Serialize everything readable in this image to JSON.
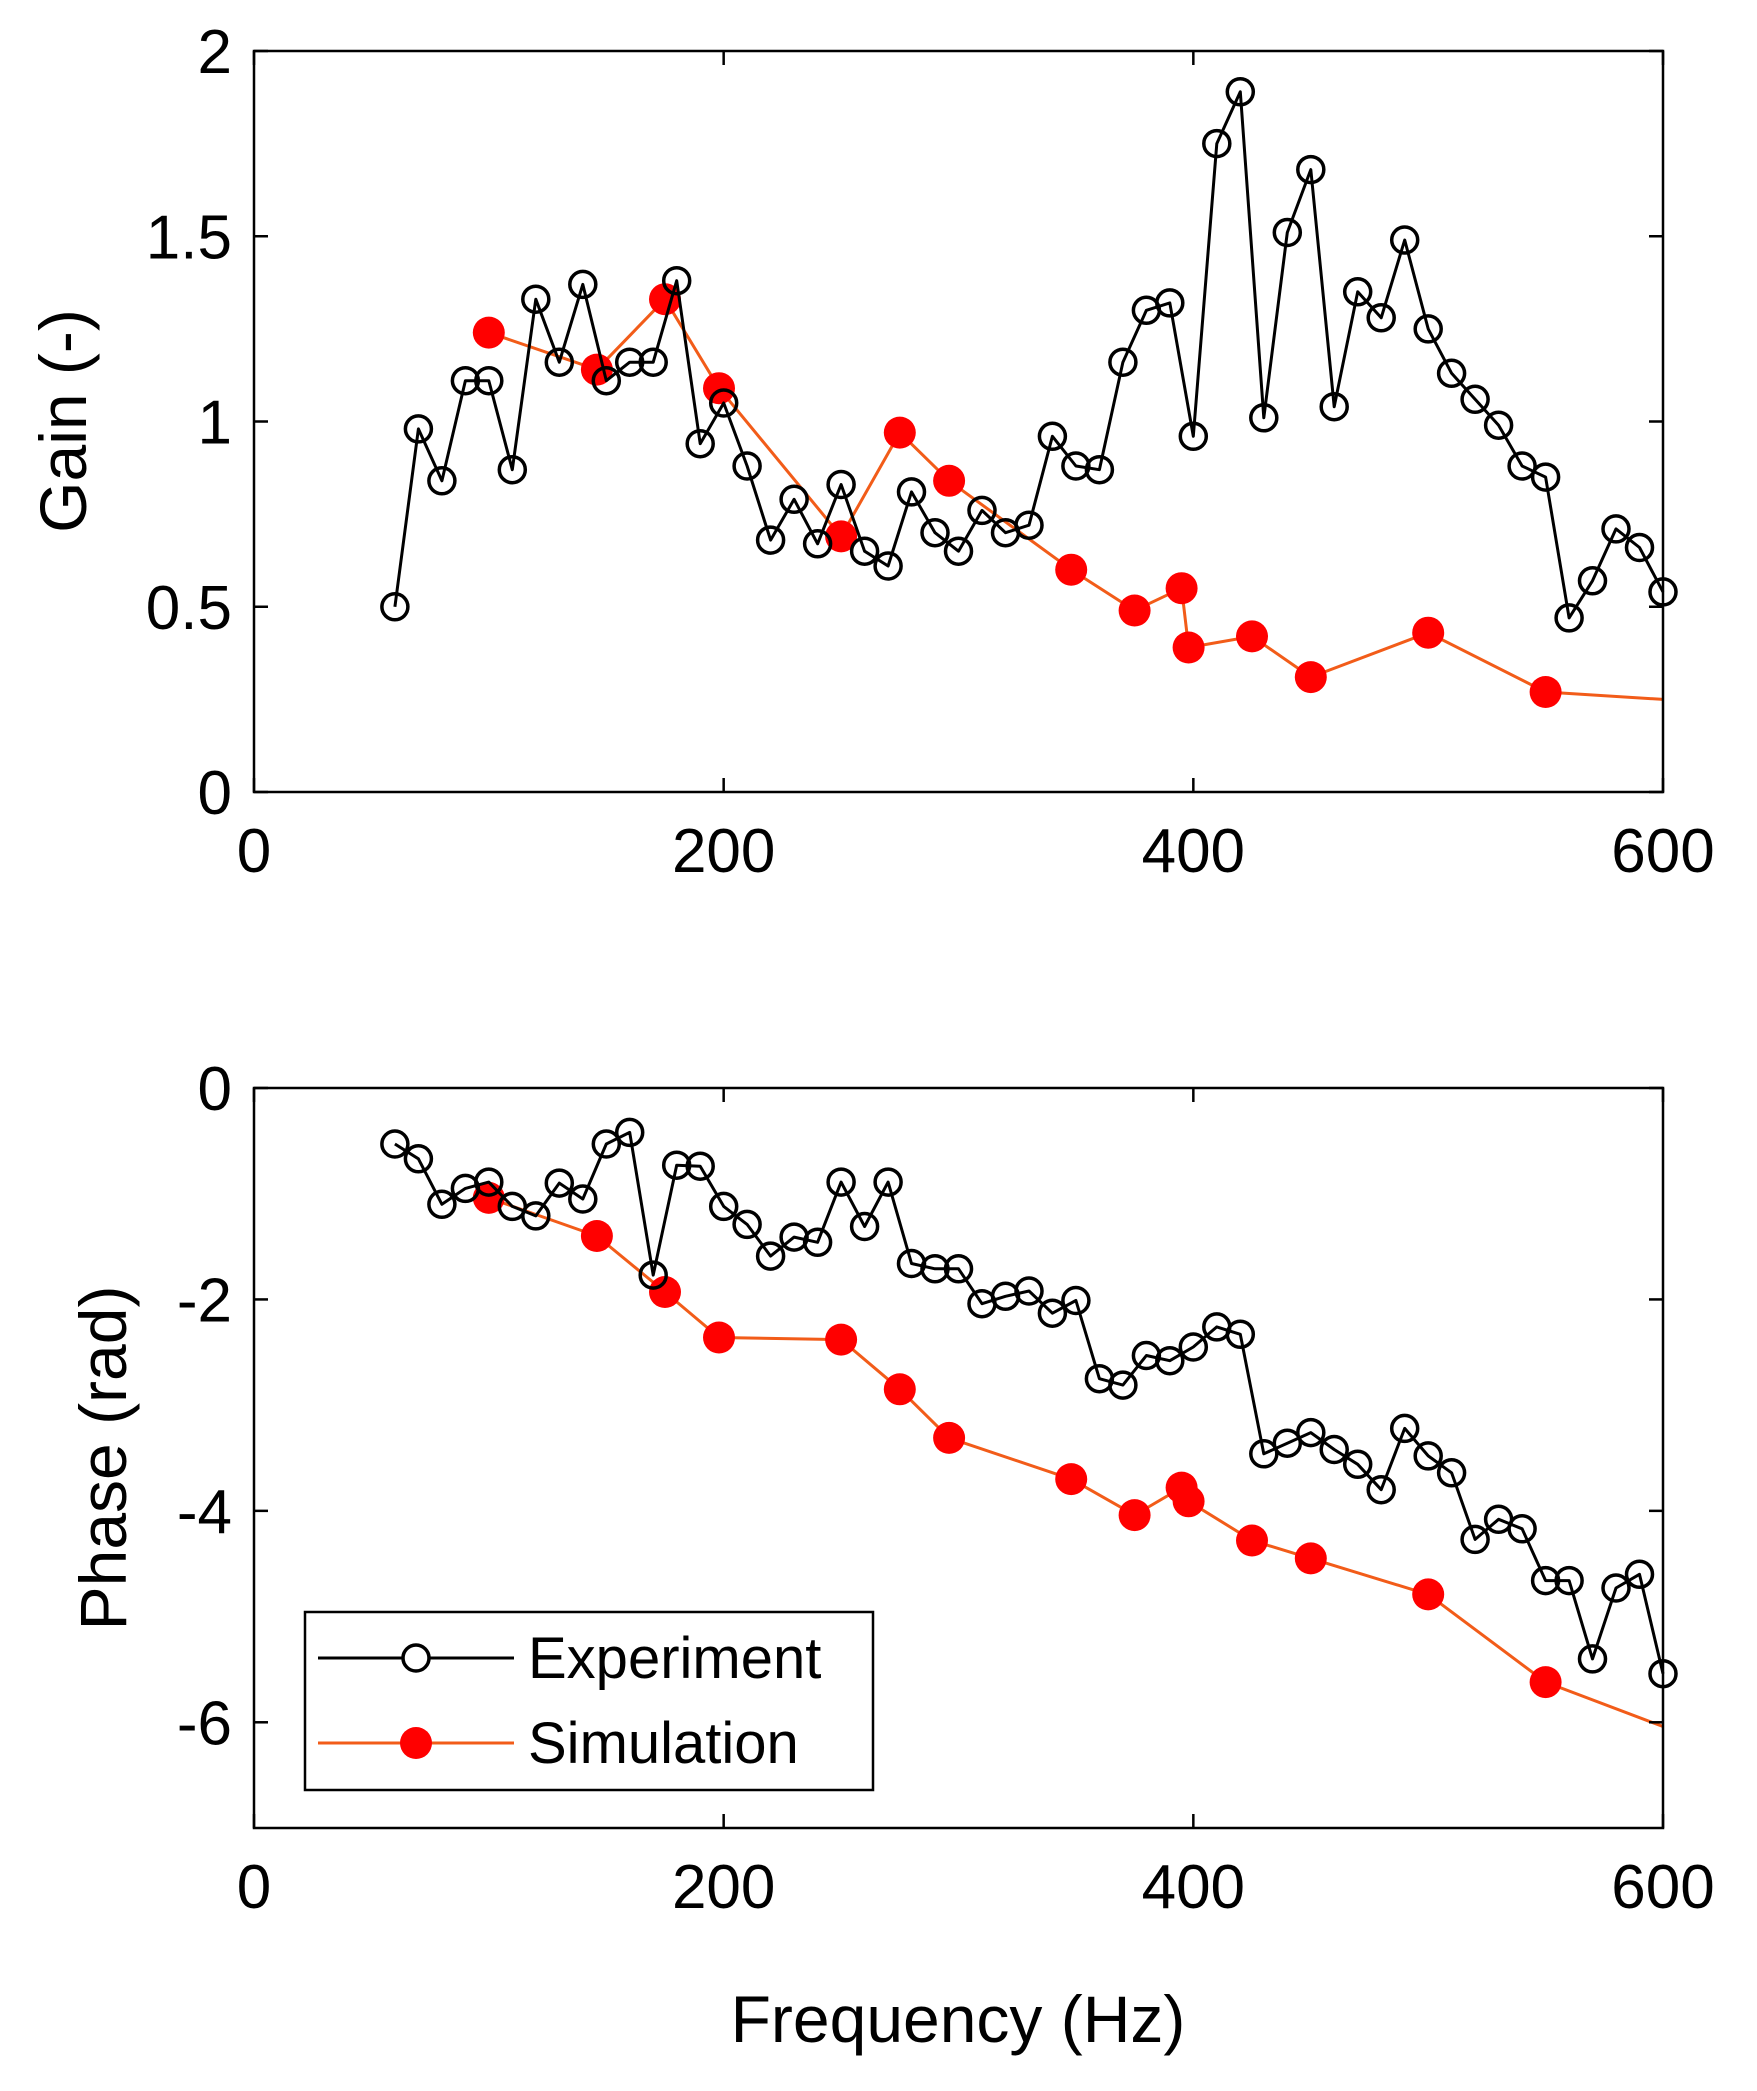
{
  "colors": {
    "experiment": "#000000",
    "simulation_line": "#f25c19",
    "simulation_marker": "#ff0000"
  },
  "legend": {
    "experiment_label": "Experiment",
    "simulation_label": "Simulation",
    "location": "bottom-left of lower plot"
  },
  "chart_data": [
    {
      "type": "line",
      "ylabel": "Gain (-)",
      "xlabel": "",
      "xlim": [
        0,
        600
      ],
      "ylim": [
        0,
        2
      ],
      "xticks": [
        0,
        200,
        400,
        600
      ],
      "xtick_labels": [
        "0",
        "200",
        "400",
        "600"
      ],
      "yticks": [
        0,
        0.5,
        1,
        1.5,
        2
      ],
      "ytick_labels": [
        "0",
        "0.5",
        "1",
        "1.5",
        "2"
      ],
      "series": [
        {
          "name": "Experiment",
          "marker": "open-circle",
          "x": [
            60,
            70,
            80,
            90,
            100,
            110,
            120,
            130,
            140,
            150,
            160,
            170,
            180,
            190,
            200,
            210,
            220,
            230,
            240,
            250,
            260,
            270,
            280,
            290,
            300,
            310,
            320,
            330,
            340,
            350,
            360,
            370,
            380,
            390,
            400,
            410,
            420,
            430,
            440,
            450,
            460,
            470,
            480,
            490,
            500,
            510,
            520,
            530,
            540,
            550,
            560,
            570,
            580,
            590,
            600
          ],
          "y": [
            0.5,
            0.98,
            0.84,
            1.11,
            1.11,
            0.87,
            1.33,
            1.16,
            1.37,
            1.11,
            1.16,
            1.16,
            1.38,
            0.94,
            1.05,
            0.88,
            0.68,
            0.79,
            0.67,
            0.83,
            0.65,
            0.61,
            0.81,
            0.7,
            0.65,
            0.76,
            0.7,
            0.72,
            0.96,
            0.88,
            0.87,
            1.16,
            1.3,
            1.32,
            0.96,
            1.75,
            1.89,
            1.01,
            1.51,
            1.68,
            1.04,
            1.35,
            1.28,
            1.49,
            1.25,
            1.13,
            1.06,
            0.99,
            0.88,
            0.85,
            0.47,
            0.57,
            0.71,
            0.66,
            0.54
          ]
        },
        {
          "name": "Simulation",
          "marker": "filled-circle",
          "x": [
            100,
            146,
            175,
            198,
            250,
            275,
            296,
            348,
            375,
            395,
            398,
            425,
            450,
            500,
            550,
            600
          ],
          "y": [
            1.24,
            1.14,
            1.33,
            1.09,
            0.69,
            0.97,
            0.84,
            0.6,
            0.49,
            0.55,
            0.39,
            0.42,
            0.31,
            0.43,
            0.27,
            0.25
          ],
          "marker_shown": [
            true,
            true,
            true,
            true,
            true,
            true,
            true,
            true,
            true,
            true,
            true,
            true,
            true,
            true,
            true,
            false
          ]
        }
      ]
    },
    {
      "type": "line",
      "ylabel": "Phase (rad)",
      "xlabel": "Frequency (Hz)",
      "xlim": [
        0,
        600
      ],
      "ylim": [
        -7,
        0
      ],
      "xticks": [
        0,
        200,
        400,
        600
      ],
      "xtick_labels": [
        "0",
        "200",
        "400",
        "600"
      ],
      "yticks": [
        -6,
        -4,
        -2,
        0
      ],
      "ytick_labels": [
        "-6",
        "-4",
        "-2",
        "0"
      ],
      "series": [
        {
          "name": "Experiment",
          "marker": "open-circle",
          "x": [
            60,
            70,
            80,
            90,
            100,
            110,
            120,
            130,
            140,
            150,
            160,
            170,
            180,
            190,
            200,
            210,
            220,
            230,
            240,
            250,
            260,
            270,
            280,
            290,
            300,
            310,
            320,
            330,
            340,
            350,
            360,
            370,
            380,
            390,
            400,
            410,
            420,
            430,
            440,
            450,
            460,
            470,
            480,
            490,
            500,
            510,
            520,
            530,
            540,
            550,
            560,
            570,
            580,
            590,
            600
          ],
          "y": [
            -0.53,
            -0.67,
            -1.1,
            -0.95,
            -0.89,
            -1.12,
            -1.21,
            -0.9,
            -1.05,
            -0.53,
            -0.42,
            -1.77,
            -0.73,
            -0.74,
            -1.12,
            -1.29,
            -1.59,
            -1.41,
            -1.46,
            -0.89,
            -1.31,
            -0.89,
            -1.66,
            -1.71,
            -1.71,
            -2.04,
            -1.97,
            -1.92,
            -2.13,
            -2.01,
            -2.75,
            -2.81,
            -2.53,
            -2.58,
            -2.45,
            -2.26,
            -2.33,
            -3.46,
            -3.36,
            -3.26,
            -3.42,
            -3.56,
            -3.8,
            -3.22,
            -3.48,
            -3.64,
            -4.27,
            -4.08,
            -4.17,
            -4.66,
            -4.66,
            -5.4,
            -4.73,
            -4.6,
            -5.54
          ]
        },
        {
          "name": "Simulation",
          "marker": "filled-circle",
          "x": [
            100,
            146,
            175,
            198,
            250,
            275,
            296,
            348,
            375,
            395,
            398,
            425,
            450,
            500,
            550,
            600
          ],
          "y": [
            -1.04,
            -1.4,
            -1.93,
            -2.36,
            -2.38,
            -2.85,
            -3.31,
            -3.7,
            -4.04,
            -3.78,
            -3.91,
            -4.28,
            -4.45,
            -4.79,
            -5.62,
            -6.04
          ],
          "marker_shown": [
            true,
            true,
            true,
            true,
            true,
            true,
            true,
            true,
            true,
            true,
            true,
            true,
            true,
            true,
            true,
            false
          ]
        }
      ]
    }
  ]
}
